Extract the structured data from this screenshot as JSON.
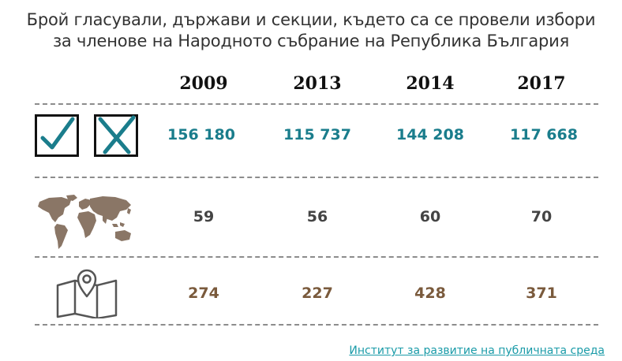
{
  "title_line1": "Брой гласували, държави и секции, където са се провели избори",
  "title_line2": "за членове на Народното събрание на Република България",
  "source_link": "Институт за развитие на публичната среда",
  "icons": [
    "ballot-check-icon",
    "ballot-cross-icon",
    "world-map-icon",
    "map-pin-icon"
  ],
  "colors": {
    "voters": "#1a7d8c",
    "countries": "#444444",
    "sections": "#7a5a3c",
    "map_fill": "#8a7666",
    "divider": "#8c8c8c",
    "link": "#1a9ba8"
  },
  "chart_data": {
    "type": "table",
    "title": "Брой гласували, държави и секции, където са се провели избори за членове на Народното събрание на Република България",
    "columns": [
      "2009",
      "2013",
      "2014",
      "2017"
    ],
    "rows": [
      {
        "icon": "ballot-check-cross-icon",
        "values": [
          "156 180",
          "115 737",
          "144 208",
          "117 668"
        ],
        "numeric": [
          156180,
          115737,
          144208,
          117668
        ]
      },
      {
        "icon": "world-map-icon",
        "values": [
          "59",
          "56",
          "60",
          "70"
        ],
        "numeric": [
          59,
          56,
          60,
          70
        ]
      },
      {
        "icon": "map-pin-icon",
        "values": [
          "274",
          "227",
          "428",
          "371"
        ],
        "numeric": [
          274,
          227,
          428,
          371
        ]
      }
    ]
  }
}
